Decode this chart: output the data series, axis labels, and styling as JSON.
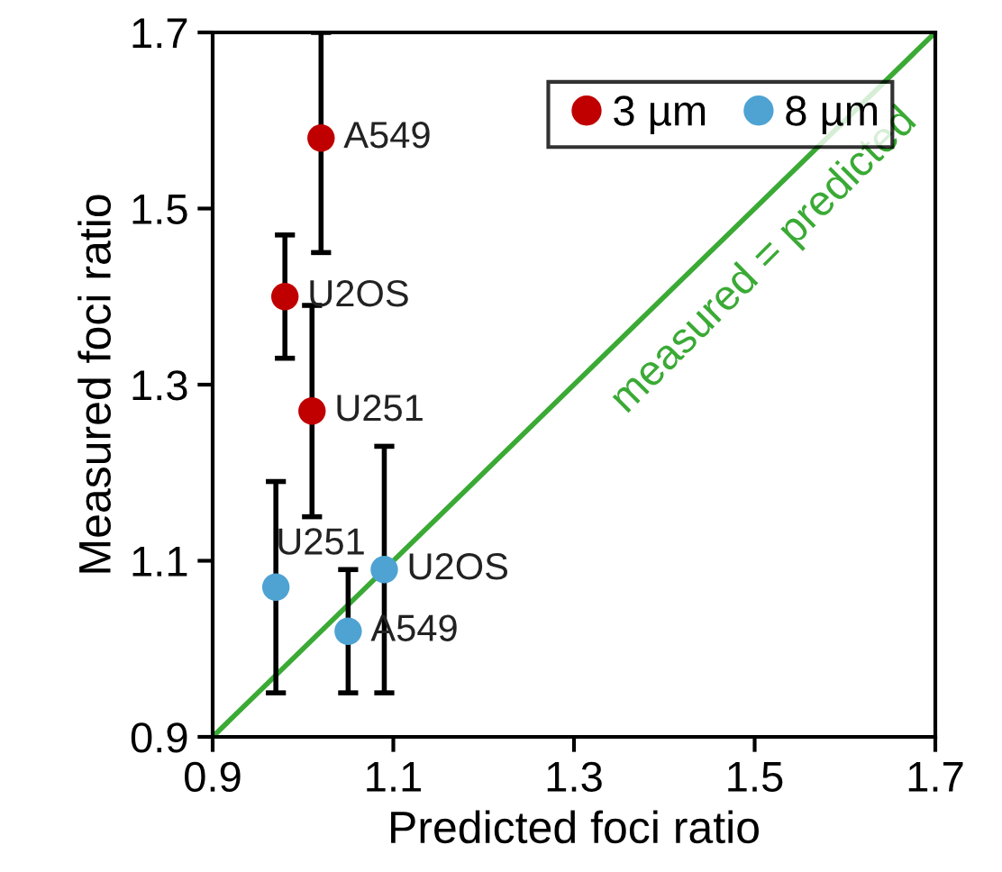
{
  "chart_data": {
    "type": "scatter",
    "xlabel": "Predicted foci ratio",
    "ylabel": "Measured foci ratio",
    "xlim": [
      0.9,
      1.7
    ],
    "ylim": [
      0.9,
      1.7
    ],
    "xticks": [
      0.9,
      1.1,
      1.3,
      1.5,
      1.7
    ],
    "yticks": [
      0.9,
      1.1,
      1.3,
      1.5,
      1.7
    ],
    "grid": false,
    "legend": "top right",
    "marker": "circle",
    "series": [
      {
        "name": "3 µm",
        "color": "#c00000",
        "x": [
          1.02,
          0.98,
          1.01
        ],
        "values": [
          1.58,
          1.4,
          1.27
        ],
        "errors": [
          [
            1.45,
            1.7
          ],
          [
            1.33,
            1.47
          ],
          [
            1.15,
            1.39
          ]
        ]
      },
      {
        "name": "8 µm",
        "color": "#4ea3d3",
        "x": [
          0.97,
          1.05,
          1.09
        ],
        "values": [
          1.07,
          1.02,
          1.09
        ],
        "errors": [
          [
            0.95,
            1.19
          ],
          [
            0.95,
            1.09
          ],
          [
            0.95,
            1.23
          ]
        ]
      },
      {
        "name": "measured = predicted",
        "type": "line",
        "marker": "none",
        "color": "#3aaa35",
        "x": [
          0.9,
          1.7
        ],
        "values": [
          0.9,
          1.7
        ]
      }
    ],
    "annotations": [
      {
        "text": "A549",
        "x": 1.02,
        "y": 1.58
      },
      {
        "text": "U2OS",
        "x": 0.98,
        "y": 1.4
      },
      {
        "text": "U251",
        "x": 1.01,
        "y": 1.27
      },
      {
        "text": "U251",
        "x": 0.97,
        "y": 1.07
      },
      {
        "text": "A549",
        "x": 1.05,
        "y": 1.02
      },
      {
        "text": "U2OS",
        "x": 1.09,
        "y": 1.09
      }
    ]
  }
}
